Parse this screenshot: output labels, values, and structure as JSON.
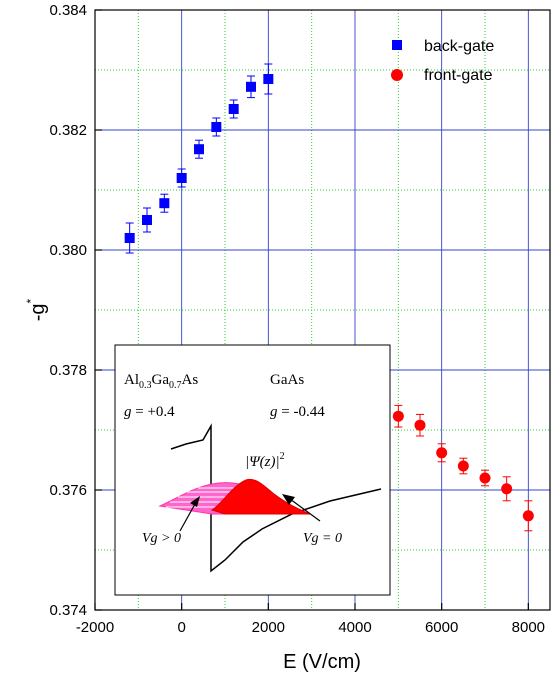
{
  "chart_data": {
    "type": "scatter",
    "xlabel": "E (V/cm)",
    "ylabel": "-g",
    "ylabel_sup": "*",
    "xlim": [
      -2000,
      8500
    ],
    "ylim": [
      0.374,
      0.384
    ],
    "x_ticks": [
      -2000,
      0,
      2000,
      4000,
      6000,
      8000
    ],
    "x_tick_labels": [
      "-2000",
      "0",
      "2000",
      "4000",
      "6000",
      "8000"
    ],
    "y_ticks": [
      0.374,
      0.376,
      0.378,
      0.38,
      0.382,
      0.384
    ],
    "y_tick_labels": [
      "0.374",
      "0.376",
      "0.378",
      "0.380",
      "0.382",
      "0.384"
    ],
    "grid": true,
    "legend_position": "top-right",
    "series": [
      {
        "name": "back-gate",
        "marker": "square",
        "color": "#0000ff",
        "x": [
          -1200,
          -800,
          -400,
          0,
          400,
          800,
          1200,
          1600,
          2000
        ],
        "y": [
          0.3802,
          0.3805,
          0.38078,
          0.3812,
          0.38168,
          0.38205,
          0.38235,
          0.38272,
          0.38285
        ],
        "err": [
          0.00025,
          0.0002,
          0.00015,
          0.00015,
          0.00015,
          0.00015,
          0.00015,
          0.00018,
          0.00025
        ]
      },
      {
        "name": "front-gate",
        "marker": "circle",
        "color": "#ff0000",
        "x": [
          5000,
          5500,
          6000,
          6500,
          7000,
          7500,
          8000
        ],
        "y": [
          0.37723,
          0.37708,
          0.37662,
          0.3764,
          0.3762,
          0.37602,
          0.37557
        ],
        "err": [
          0.00018,
          0.00018,
          0.00015,
          0.00013,
          0.00013,
          0.0002,
          0.00025
        ]
      }
    ],
    "inset": {
      "left_material": "Al",
      "left_sub1": "0.3",
      "left_mid": "Ga",
      "left_sub2": "0.7",
      "left_end": "As",
      "right_material": "GaAs",
      "g_left_sym": "g",
      "g_left_val": " = +0.4",
      "g_right_sym": "g",
      "g_right_val": " = -0.44",
      "psi_label": "|Ψ(z)|",
      "psi_sup": "2",
      "vg_pos_label": "Vg > 0",
      "vg_zero_label": "Vg = 0"
    }
  }
}
